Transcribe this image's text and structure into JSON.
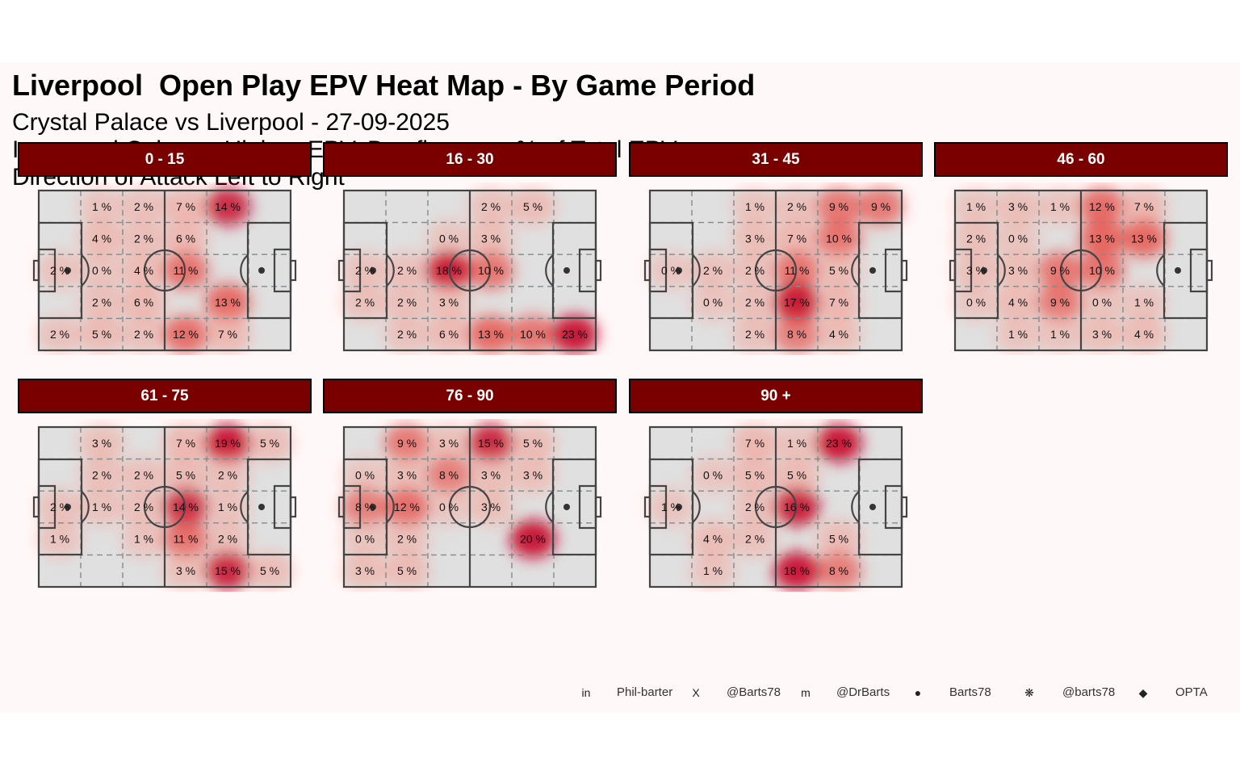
{
  "title": "Liverpool  Open Play EPV Heat Map - By Game Period",
  "subtitle_lines": [
    "Crystal Palace vs Liverpool - 27-09-2025",
    "Increased Colour = Higher, EPV, Box figures = % of Total EPV",
    "Direction of Attack Left to Right"
  ],
  "colors": {
    "strip_bg": "#7a0000",
    "pitch_bg": "#e0e0e0",
    "heat_low": "#f4a399",
    "heat_high": "#c8102e"
  },
  "chart_data": {
    "type": "heatmap",
    "grid": "5 rows x 6 columns per pitch; attack left to right",
    "panels": [
      {
        "label": "0 - 15",
        "cells": [
          [
            "",
            "1 %",
            "2 %",
            "7 %",
            "14 %",
            ""
          ],
          [
            "",
            "4 %",
            "2 %",
            "6 %",
            "",
            ""
          ],
          [
            "2 %",
            "0 %",
            "4 %",
            "11 %",
            "",
            ""
          ],
          [
            "",
            "2 %",
            "6 %",
            "",
            "13 %",
            ""
          ],
          [
            "2 %",
            "5 %",
            "2 %",
            "12 %",
            "7 %",
            ""
          ]
        ]
      },
      {
        "label": "16 - 30",
        "cells": [
          [
            "",
            "",
            "",
            "2 %",
            "5 %",
            ""
          ],
          [
            "",
            "",
            "0 %",
            "3 %",
            "",
            ""
          ],
          [
            "2 %",
            "2 %",
            "18 %",
            "10 %",
            "",
            ""
          ],
          [
            "2 %",
            "2 %",
            "3 %",
            "",
            "",
            ""
          ],
          [
            "",
            "2 %",
            "6 %",
            "13 %",
            "10 %",
            "23 %"
          ]
        ]
      },
      {
        "label": "31 - 45",
        "cells": [
          [
            "",
            "",
            "1 %",
            "2 %",
            "9 %",
            "9 %"
          ],
          [
            "",
            "",
            "3 %",
            "7 %",
            "10 %",
            ""
          ],
          [
            "0 %",
            "2 %",
            "2 %",
            "11 %",
            "5 %",
            ""
          ],
          [
            "",
            "0 %",
            "2 %",
            "17 %",
            "7 %",
            ""
          ],
          [
            "",
            "",
            "2 %",
            "8 %",
            "4 %",
            ""
          ]
        ]
      },
      {
        "label": "46 - 60",
        "cells": [
          [
            "1 %",
            "3 %",
            "1 %",
            "12 %",
            "7 %",
            ""
          ],
          [
            "2 %",
            "0 %",
            "",
            "13 %",
            "13 %",
            ""
          ],
          [
            "3 %",
            "3 %",
            "9 %",
            "10 %",
            "",
            ""
          ],
          [
            "0 %",
            "4 %",
            "9 %",
            "0 %",
            "1 %",
            ""
          ],
          [
            "",
            "1 %",
            "1 %",
            "3 %",
            "4 %",
            ""
          ]
        ]
      },
      {
        "label": "61 - 75",
        "cells": [
          [
            "",
            "3 %",
            "",
            "7 %",
            "19 %",
            "5 %"
          ],
          [
            "",
            "2 %",
            "2 %",
            "5 %",
            "2 %",
            ""
          ],
          [
            "2 %",
            "1 %",
            "2 %",
            "14 %",
            "1 %",
            ""
          ],
          [
            "1 %",
            "",
            "1 %",
            "11 %",
            "2 %",
            ""
          ],
          [
            "",
            "",
            "",
            "3 %",
            "15 %",
            "5 %"
          ]
        ]
      },
      {
        "label": "76 - 90",
        "cells": [
          [
            "",
            "9 %",
            "3 %",
            "15 %",
            "5 %",
            ""
          ],
          [
            "0 %",
            "3 %",
            "8 %",
            "3 %",
            "3 %",
            ""
          ],
          [
            "8 %",
            "12 %",
            "0 %",
            "3 %",
            "",
            ""
          ],
          [
            "0 %",
            "2 %",
            "",
            "",
            "20 %",
            ""
          ],
          [
            "3 %",
            "5 %",
            "",
            "",
            "",
            ""
          ]
        ]
      },
      {
        "label": "90 +",
        "cells": [
          [
            "",
            "",
            "7 %",
            "1 %",
            "23 %",
            ""
          ],
          [
            "",
            "0 %",
            "5 %",
            "5 %",
            "",
            ""
          ],
          [
            "1 %",
            "",
            "2 %",
            "16 %",
            "",
            ""
          ],
          [
            "",
            "4 %",
            "2 %",
            "",
            "5 %",
            ""
          ],
          [
            "",
            "1 %",
            "",
            "18 %",
            "8 %",
            ""
          ]
        ]
      }
    ]
  },
  "footer": [
    {
      "icon": "linkedin-icon",
      "glyph": "in",
      "text": "Phil-barter"
    },
    {
      "icon": "x-icon",
      "glyph": "X",
      "text": "@Barts78"
    },
    {
      "icon": "mastodon-icon",
      "glyph": "m",
      "text": "@DrBarts"
    },
    {
      "icon": "github-icon",
      "glyph": "●",
      "text": "Barts78"
    },
    {
      "icon": "bluesky-icon",
      "glyph": "❋",
      "text": "@barts78"
    },
    {
      "icon": "dropbox-icon",
      "glyph": "◆",
      "text": "OPTA"
    }
  ]
}
